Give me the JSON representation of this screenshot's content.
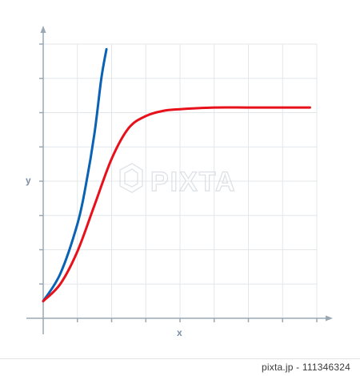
{
  "chart_data": {
    "type": "line",
    "title": "",
    "xlabel": "x",
    "ylabel": "y",
    "xlim": [
      0,
      8
    ],
    "ylim": [
      0,
      8
    ],
    "grid": true,
    "x_tick_count": 8,
    "y_tick_count": 8,
    "series": [
      {
        "color": "#0a62b5",
        "x": [
          0,
          0.5,
          1.0,
          1.25,
          1.5,
          1.7,
          1.85
        ],
        "y": [
          0.5,
          1.3,
          2.75,
          3.9,
          5.4,
          7.0,
          7.85
        ]
      },
      {
        "color": "#e8101a",
        "x": [
          0,
          0.5,
          1.0,
          1.5,
          2.0,
          2.5,
          3.0,
          3.5,
          4.0,
          5.0,
          6.0,
          7.0,
          7.8
        ],
        "y": [
          0.5,
          1.0,
          1.95,
          3.3,
          4.65,
          5.55,
          5.9,
          6.05,
          6.1,
          6.15,
          6.15,
          6.15,
          6.15
        ]
      }
    ]
  },
  "watermark": {
    "text": "PIXTA",
    "color": "#d9dde2"
  },
  "footer": {
    "text": "pixta.jp - 111346324"
  }
}
